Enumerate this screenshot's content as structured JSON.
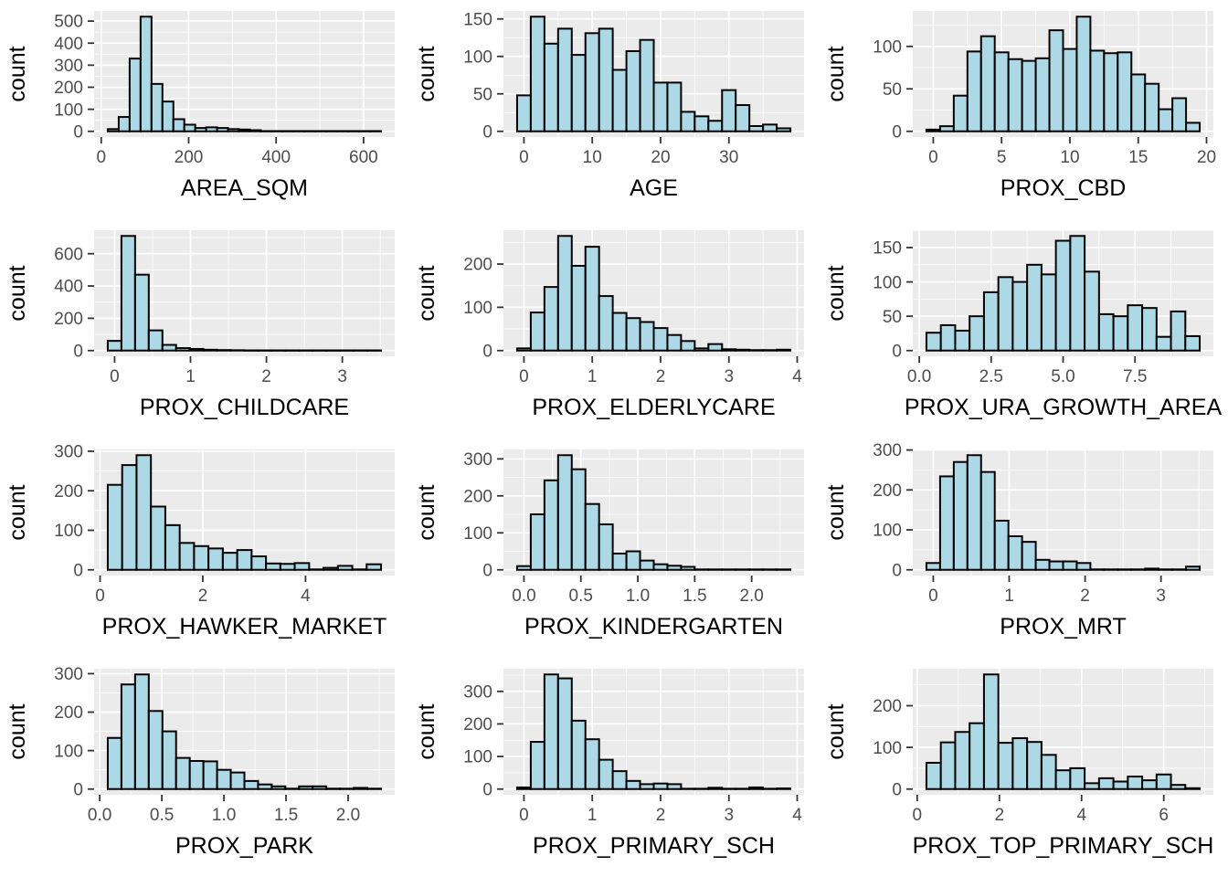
{
  "figure": {
    "title": "",
    "rows": 4,
    "cols": 3,
    "colors": {
      "background": "#FFFFFF",
      "panel_bg": "#EBEBEB",
      "grid_major": "#FFFFFF",
      "grid_minor": "#FFFFFF",
      "bar_fill": "#ADD8E6",
      "bar_stroke": "#000000",
      "tick_mark": "#333333",
      "tick_label": "#4D4D4D",
      "axis_title": "#000000"
    }
  },
  "chart_data": [
    {
      "type": "bar",
      "title": "",
      "xlabel": "AREA_SQM",
      "ylabel": "count",
      "bin_start": 15,
      "bin_width": 25,
      "counts": [
        10,
        65,
        330,
        520,
        215,
        135,
        55,
        30,
        15,
        18,
        15,
        10,
        8,
        5,
        1,
        1,
        1,
        1,
        1,
        1,
        1,
        1,
        1,
        1,
        1
      ],
      "x_ticks": [
        0,
        200,
        400,
        600
      ],
      "x_tick_labels": [
        "0",
        "200",
        "400",
        "600"
      ],
      "y_ticks": [
        0,
        100,
        200,
        300,
        400,
        500
      ],
      "y_tick_labels": [
        "0",
        "100",
        "200",
        "300",
        "400",
        "500"
      ],
      "xlim": [
        -16.25,
        671.25
      ],
      "ylim": [
        -26,
        546
      ]
    },
    {
      "type": "bar",
      "title": "",
      "xlabel": "AGE",
      "ylabel": "count",
      "bin_start": -1,
      "bin_width": 2,
      "counts": [
        48,
        153,
        117,
        137,
        102,
        131,
        137,
        82,
        107,
        122,
        65,
        65,
        26,
        20,
        14,
        55,
        35,
        7,
        9,
        4
      ],
      "x_ticks": [
        0,
        10,
        20,
        30
      ],
      "x_tick_labels": [
        "0",
        "10",
        "20",
        "30"
      ],
      "y_ticks": [
        0,
        50,
        100,
        150
      ],
      "y_tick_labels": [
        "0",
        "50",
        "100",
        "150"
      ],
      "xlim": [
        -3,
        41
      ],
      "ylim": [
        -7.65,
        160.65
      ]
    },
    {
      "type": "bar",
      "title": "",
      "xlabel": "PROX_CBD",
      "ylabel": "count",
      "bin_start": -0.5,
      "bin_width": 1,
      "counts": [
        2,
        6,
        42,
        94,
        112,
        93,
        85,
        83,
        86,
        119,
        97,
        135,
        95,
        92,
        93,
        67,
        56,
        26,
        39,
        10
      ],
      "x_ticks": [
        0,
        5,
        10,
        15,
        20
      ],
      "x_tick_labels": [
        "0",
        "5",
        "10",
        "15",
        "20"
      ],
      "y_ticks": [
        0,
        50,
        100
      ],
      "y_tick_labels": [
        "0",
        "50",
        "100"
      ],
      "xlim": [
        -1.5,
        20.5
      ],
      "ylim": [
        -6.75,
        141.75
      ]
    },
    {
      "type": "bar",
      "title": "",
      "xlabel": "PROX_CHILDCARE",
      "ylabel": "count",
      "bin_start": -0.09,
      "bin_width": 0.18,
      "counts": [
        60,
        710,
        470,
        125,
        35,
        15,
        10,
        5,
        3,
        2,
        1,
        1,
        1,
        1,
        1,
        1,
        1,
        1,
        1,
        1
      ],
      "x_ticks": [
        0,
        1,
        2,
        3
      ],
      "x_tick_labels": [
        "0",
        "1",
        "2",
        "3"
      ],
      "y_ticks": [
        0,
        200,
        400,
        600
      ],
      "y_tick_labels": [
        "0",
        "200",
        "400",
        "600"
      ],
      "xlim": [
        -0.27,
        3.69
      ],
      "ylim": [
        -35.5,
        745.5
      ]
    },
    {
      "type": "bar",
      "title": "",
      "xlabel": "PROX_ELDERLYCARE",
      "ylabel": "count",
      "bin_start": -0.1,
      "bin_width": 0.2,
      "counts": [
        5,
        88,
        147,
        265,
        196,
        240,
        126,
        87,
        75,
        66,
        52,
        36,
        22,
        5,
        15,
        3,
        2,
        1,
        1,
        2
      ],
      "x_ticks": [
        0,
        1,
        2,
        3,
        4
      ],
      "x_tick_labels": [
        "0",
        "1",
        "2",
        "3",
        "4"
      ],
      "y_ticks": [
        0,
        100,
        200
      ],
      "y_tick_labels": [
        "0",
        "100",
        "200"
      ],
      "xlim": [
        -0.3,
        4.1
      ],
      "ylim": [
        -13.25,
        278.25
      ]
    },
    {
      "type": "bar",
      "title": "",
      "xlabel": "PROX_URA_GROWTH_AREA",
      "ylabel": "count",
      "bin_start": 0.25,
      "bin_width": 0.5,
      "counts": [
        26,
        37,
        29,
        50,
        85,
        107,
        100,
        125,
        111,
        160,
        167,
        115,
        53,
        50,
        66,
        62,
        20,
        57,
        21
      ],
      "x_ticks": [
        0,
        2.5,
        5,
        7.5
      ],
      "x_tick_labels": [
        "0.0",
        "2.5",
        "5.0",
        "7.5"
      ],
      "y_ticks": [
        0,
        50,
        100,
        150
      ],
      "y_tick_labels": [
        "0",
        "50",
        "100",
        "150"
      ],
      "xlim": [
        -0.225,
        10.225
      ],
      "ylim": [
        -8.35,
        175.35
      ]
    },
    {
      "type": "bar",
      "title": "",
      "xlabel": "PROX_HAWKER_MARKET",
      "ylabel": "count",
      "bin_start": 0.15,
      "bin_width": 0.28,
      "counts": [
        215,
        265,
        290,
        160,
        113,
        68,
        60,
        54,
        43,
        50,
        34,
        16,
        15,
        17,
        1,
        5,
        10,
        1,
        14
      ],
      "x_ticks": [
        0,
        2,
        4
      ],
      "x_tick_labels": [
        "0",
        "2",
        "4"
      ],
      "y_ticks": [
        0,
        100,
        200,
        300
      ],
      "y_tick_labels": [
        "0",
        "100",
        "200",
        "300"
      ],
      "xlim": [
        -0.116,
        5.736
      ],
      "ylim": [
        -14.5,
        304.5
      ]
    },
    {
      "type": "bar",
      "title": "",
      "xlabel": "PROX_KINDERGARTEN",
      "ylabel": "count",
      "bin_start": -0.06,
      "bin_width": 0.12,
      "counts": [
        10,
        150,
        242,
        310,
        272,
        178,
        123,
        44,
        50,
        25,
        15,
        11,
        8,
        1,
        1,
        1,
        1,
        1,
        1,
        1
      ],
      "x_ticks": [
        0,
        0.5,
        1,
        1.5,
        2
      ],
      "x_tick_labels": [
        "0.0",
        "0.5",
        "1.0",
        "1.5",
        "2.0"
      ],
      "y_ticks": [
        0,
        100,
        200,
        300
      ],
      "y_tick_labels": [
        "0",
        "100",
        "200",
        "300"
      ],
      "xlim": [
        -0.18,
        2.46
      ],
      "ylim": [
        -15.5,
        325.5
      ]
    },
    {
      "type": "bar",
      "title": "",
      "xlabel": "PROX_MRT",
      "ylabel": "count",
      "bin_start": -0.09,
      "bin_width": 0.18,
      "counts": [
        17,
        234,
        270,
        287,
        245,
        123,
        84,
        70,
        25,
        21,
        21,
        17,
        1,
        1,
        1,
        1,
        3,
        1,
        1,
        8
      ],
      "x_ticks": [
        0,
        1,
        2,
        3
      ],
      "x_tick_labels": [
        "0",
        "1",
        "2",
        "3"
      ],
      "y_ticks": [
        0,
        100,
        200,
        300
      ],
      "y_tick_labels": [
        "0",
        "100",
        "200",
        "300"
      ],
      "xlim": [
        -0.27,
        3.69
      ],
      "ylim": [
        -14.35,
        301.35
      ]
    },
    {
      "type": "bar",
      "title": "",
      "xlabel": "PROX_PARK",
      "ylabel": "count",
      "bin_start": 0.065,
      "bin_width": 0.11,
      "counts": [
        133,
        272,
        298,
        203,
        150,
        81,
        73,
        72,
        50,
        43,
        21,
        12,
        7,
        1,
        7,
        7,
        1,
        1,
        3,
        1
      ],
      "x_ticks": [
        0,
        0.5,
        1,
        1.5,
        2
      ],
      "x_tick_labels": [
        "0.0",
        "0.5",
        "1.0",
        "1.5",
        "2.0"
      ],
      "y_ticks": [
        0,
        100,
        200,
        300
      ],
      "y_tick_labels": [
        "0",
        "100",
        "200",
        "300"
      ],
      "xlim": [
        -0.045,
        2.375
      ],
      "ylim": [
        -14.9,
        312.9
      ]
    },
    {
      "type": "bar",
      "title": "",
      "xlabel": "PROX_PRIMARY_SCH",
      "ylabel": "count",
      "bin_start": -0.1,
      "bin_width": 0.2,
      "counts": [
        5,
        145,
        352,
        340,
        210,
        153,
        90,
        55,
        25,
        15,
        17,
        15,
        1,
        1,
        4,
        1,
        1,
        5,
        1,
        2
      ],
      "x_ticks": [
        0,
        1,
        2,
        3,
        4
      ],
      "x_tick_labels": [
        "0",
        "1",
        "2",
        "3",
        "4"
      ],
      "y_ticks": [
        0,
        100,
        200,
        300
      ],
      "y_tick_labels": [
        "0",
        "100",
        "200",
        "300"
      ],
      "xlim": [
        -0.3,
        4.1
      ],
      "ylim": [
        -17.6,
        369.6
      ]
    },
    {
      "type": "bar",
      "title": "",
      "xlabel": "PROX_TOP_PRIMARY_SCH",
      "ylabel": "count",
      "bin_start": 0.225,
      "bin_width": 0.35,
      "counts": [
        63,
        112,
        137,
        158,
        275,
        111,
        122,
        113,
        82,
        45,
        50,
        14,
        26,
        18,
        30,
        21,
        35,
        10,
        2
      ],
      "x_ticks": [
        0,
        2,
        4,
        6
      ],
      "x_tick_labels": [
        "0",
        "2",
        "4",
        "6"
      ],
      "y_ticks": [
        0,
        100,
        200
      ],
      "y_tick_labels": [
        "0",
        "100",
        "200"
      ],
      "xlim": [
        -0.1075,
        7.2075
      ],
      "ylim": [
        -13.75,
        288.75
      ]
    }
  ]
}
